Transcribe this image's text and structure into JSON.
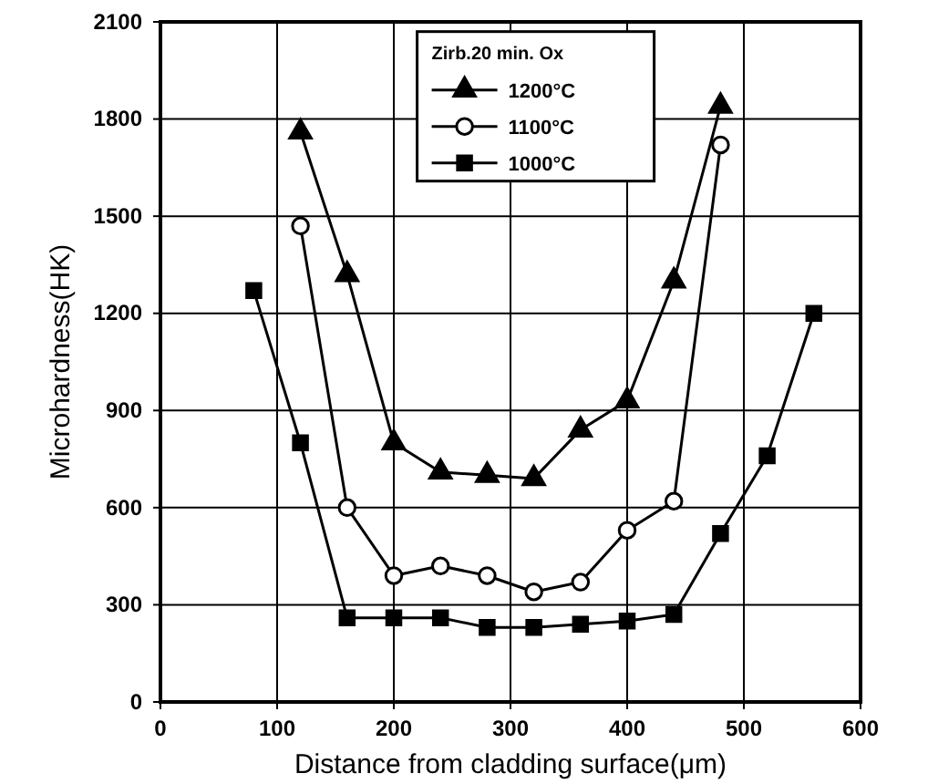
{
  "chart_data": {
    "type": "line",
    "xlabel": "Distance from cladding surface(μm)",
    "ylabel": "Microhardness(HK)",
    "legend_title": "Zirb.20 min. Ox",
    "xlim": [
      0,
      600
    ],
    "xticks": [
      0,
      100,
      200,
      300,
      400,
      500,
      600
    ],
    "ylim": [
      0,
      2100
    ],
    "yticks": [
      0,
      300,
      600,
      900,
      1200,
      1500,
      1800,
      2100
    ],
    "grid": true,
    "legend": "top",
    "line_style": "solid",
    "series": [
      {
        "name": "1200°C",
        "color": "#000000",
        "marker": "triangle",
        "x": [
          120,
          160,
          200,
          240,
          280,
          320,
          360,
          400,
          440,
          480
        ],
        "values": [
          1760,
          1320,
          800,
          710,
          700,
          690,
          840,
          930,
          1300,
          1840
        ]
      },
      {
        "name": "1100°C",
        "color": "#000000",
        "marker": "circle",
        "x": [
          120,
          160,
          200,
          240,
          280,
          320,
          360,
          400,
          440,
          480
        ],
        "values": [
          1470,
          600,
          390,
          420,
          390,
          340,
          370,
          530,
          620,
          1720
        ]
      },
      {
        "name": "1000°C",
        "color": "#000000",
        "marker": "square",
        "x": [
          80,
          120,
          160,
          200,
          240,
          280,
          320,
          360,
          400,
          440,
          480,
          520,
          560
        ],
        "values": [
          1270,
          800,
          260,
          260,
          260,
          230,
          230,
          240,
          250,
          270,
          520,
          760,
          1200
        ]
      }
    ]
  }
}
